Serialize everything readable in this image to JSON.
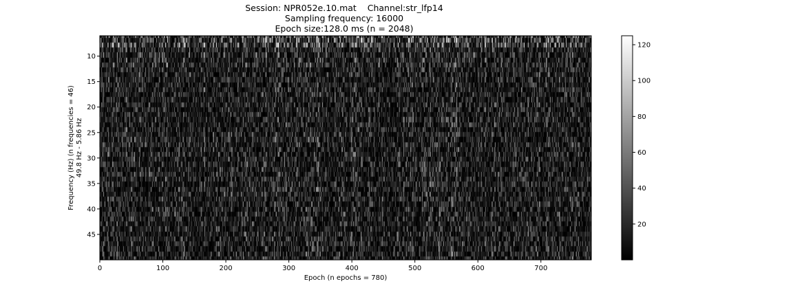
{
  "title": {
    "line1": "Session: NPR052e.10.mat    Channel:str_lfp14",
    "line2": "Sampling frequency: 16000",
    "line3": "Epoch size:128.0 ms (n = 2048)"
  },
  "chart_data": {
    "type": "heatmap",
    "title": "Session: NPR052e.10.mat    Channel:str_lfp14 / Sampling frequency: 16000 / Epoch size:128.0 ms (n = 2048)",
    "xlabel": "Epoch (n epochs = 780)",
    "ylabel_line1": "Frequency (Hz) (n frequencies = 46)",
    "ylabel_line2": "49.8 Hz - 5.86 Hz",
    "n_epochs": 780,
    "n_frequencies": 46,
    "freq_range_hz": [
      5.86,
      49.8
    ],
    "xlim": [
      0,
      780
    ],
    "ylim": [
      50,
      6
    ],
    "xticks": [
      0,
      100,
      200,
      300,
      400,
      500,
      600,
      700
    ],
    "yticks": [
      10,
      15,
      20,
      25,
      30,
      35,
      40,
      45
    ],
    "colormap": "gray",
    "color_range": [
      0,
      125
    ],
    "colorbar_ticks": [
      20,
      40,
      60,
      80,
      100,
      120
    ],
    "typical_value_range": [
      0,
      60
    ],
    "low_freq_rows_brighter": true
  }
}
